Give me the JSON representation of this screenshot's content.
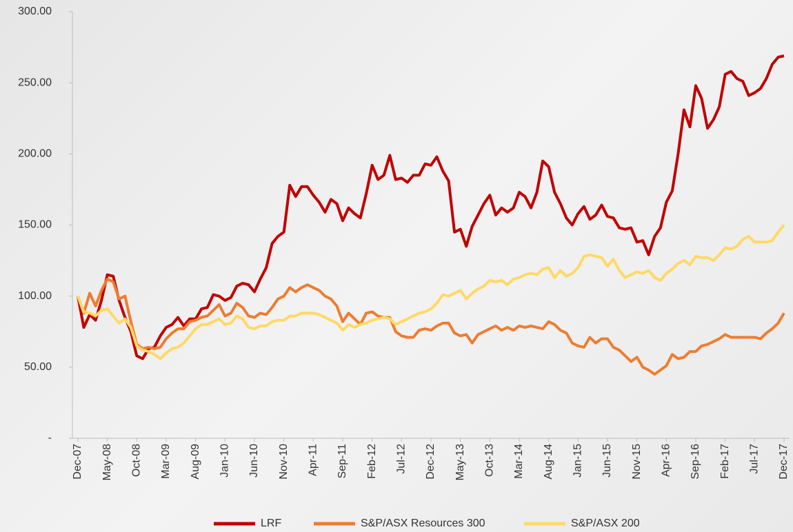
{
  "chart_data": {
    "type": "line",
    "categories": [
      "Dec-07",
      null,
      null,
      null,
      null,
      "May-08",
      null,
      null,
      null,
      null,
      "Oct-08",
      null,
      null,
      null,
      null,
      "Mar-09",
      null,
      null,
      null,
      null,
      "Aug-09",
      null,
      null,
      null,
      null,
      "Jan-10",
      null,
      null,
      null,
      null,
      "Jun-10",
      null,
      null,
      null,
      null,
      "Nov-10",
      null,
      null,
      null,
      null,
      "Apr-11",
      null,
      null,
      null,
      null,
      "Sep-11",
      null,
      null,
      null,
      null,
      "Feb-12",
      null,
      null,
      null,
      null,
      "Jul-12",
      null,
      null,
      null,
      null,
      "Dec-12",
      null,
      null,
      null,
      null,
      "May-13",
      null,
      null,
      null,
      null,
      "Oct-13",
      null,
      null,
      null,
      null,
      "Mar-14",
      null,
      null,
      null,
      null,
      "Aug-14",
      null,
      null,
      null,
      null,
      "Jan-15",
      null,
      null,
      null,
      null,
      "Jun-15",
      null,
      null,
      null,
      null,
      "Nov-15",
      null,
      null,
      null,
      null,
      "Apr-16",
      null,
      null,
      null,
      null,
      "Sep-16",
      null,
      null,
      null,
      null,
      "Feb-17",
      null,
      null,
      null,
      null,
      "Jul-17",
      null,
      null,
      null,
      null,
      "Dec-17"
    ],
    "series": [
      {
        "name": "LRF",
        "color": "#c00000",
        "values": [
          100,
          78,
          87,
          83,
          97,
          115,
          114,
          97,
          85,
          75,
          58,
          56,
          63,
          64,
          72,
          78,
          80,
          85,
          79,
          84,
          84,
          91,
          92,
          101,
          100,
          97,
          99,
          107,
          109,
          108,
          103,
          112,
          120,
          137,
          142,
          145,
          178,
          170,
          177,
          177,
          171,
          166,
          159,
          168,
          165,
          153,
          162,
          158,
          155,
          172,
          192,
          182,
          185,
          199,
          182,
          183,
          180,
          185,
          185,
          193,
          192,
          198,
          188,
          181,
          145,
          147,
          135,
          149,
          157,
          165,
          171,
          157,
          162,
          159,
          162,
          173,
          170,
          162,
          173,
          195,
          191,
          173,
          165,
          155,
          150,
          158,
          163,
          154,
          157,
          164,
          156,
          155,
          148,
          147,
          148,
          138,
          139,
          129,
          142,
          148,
          166,
          174,
          200,
          231,
          219,
          248,
          239,
          218,
          224,
          233,
          256,
          258,
          253,
          251,
          241,
          243,
          246,
          253,
          263,
          268,
          269
        ]
      },
      {
        "name": "S&P/ASX Resources 300",
        "color": "#ed7d31",
        "values": [
          100,
          88,
          102,
          93,
          104,
          112,
          110,
          98,
          100,
          82,
          66,
          63,
          64,
          63,
          64,
          70,
          74,
          77,
          77,
          82,
          83,
          85,
          86,
          90,
          94,
          86,
          88,
          95,
          92,
          86,
          85,
          88,
          87,
          92,
          98,
          100,
          106,
          103,
          106,
          108,
          106,
          104,
          100,
          98,
          93,
          82,
          88,
          84,
          80,
          88,
          89,
          86,
          85,
          85,
          75,
          72,
          71,
          71,
          76,
          77,
          76,
          79,
          81,
          81,
          74,
          72,
          73,
          67,
          73,
          75,
          77,
          79,
          76,
          78,
          76,
          79,
          78,
          79,
          78,
          77,
          82,
          80,
          76,
          74,
          67,
          65,
          64,
          71,
          67,
          70,
          70,
          64,
          62,
          58,
          54,
          57,
          50,
          48,
          45,
          48,
          51,
          59,
          56,
          57,
          61,
          61,
          65,
          66,
          68,
          70,
          73,
          71,
          71,
          71,
          71,
          71,
          70,
          74,
          77,
          81,
          88
        ]
      },
      {
        "name": "S&P/ASX 200",
        "color": "#ffd966",
        "values": [
          100,
          89,
          88,
          86,
          90,
          91,
          86,
          81,
          84,
          78,
          65,
          62,
          61,
          59,
          56,
          60,
          63,
          64,
          67,
          72,
          77,
          80,
          80,
          82,
          84,
          80,
          81,
          86,
          84,
          78,
          77,
          79,
          79,
          82,
          83,
          83,
          86,
          86,
          88,
          88,
          88,
          87,
          85,
          83,
          81,
          76,
          80,
          78,
          80,
          81,
          83,
          84,
          85,
          84,
          80,
          82,
          84,
          86,
          88,
          89,
          91,
          95,
          101,
          100,
          102,
          104,
          98,
          102,
          105,
          107,
          111,
          110,
          111,
          108,
          112,
          113,
          115,
          116,
          115,
          119,
          120,
          113,
          118,
          114,
          116,
          120,
          128,
          129,
          128,
          127,
          121,
          126,
          118,
          113,
          115,
          117,
          116,
          118,
          113,
          111,
          116,
          119,
          123,
          125,
          122,
          128,
          127,
          127,
          125,
          129,
          134,
          133,
          135,
          140,
          142,
          138,
          138,
          138,
          139,
          145,
          150
        ]
      }
    ],
    "ylim": [
      0,
      300
    ],
    "yticks": [
      {
        "value": 0,
        "label": "-"
      },
      {
        "value": 50,
        "label": "50.00"
      },
      {
        "value": 100,
        "label": "100.00"
      },
      {
        "value": 150,
        "label": "150.00"
      },
      {
        "value": 200,
        "label": "200.00"
      },
      {
        "value": 250,
        "label": "250.00"
      },
      {
        "value": 300,
        "label": "300.00"
      }
    ],
    "grid": false,
    "legend": "bottom"
  }
}
